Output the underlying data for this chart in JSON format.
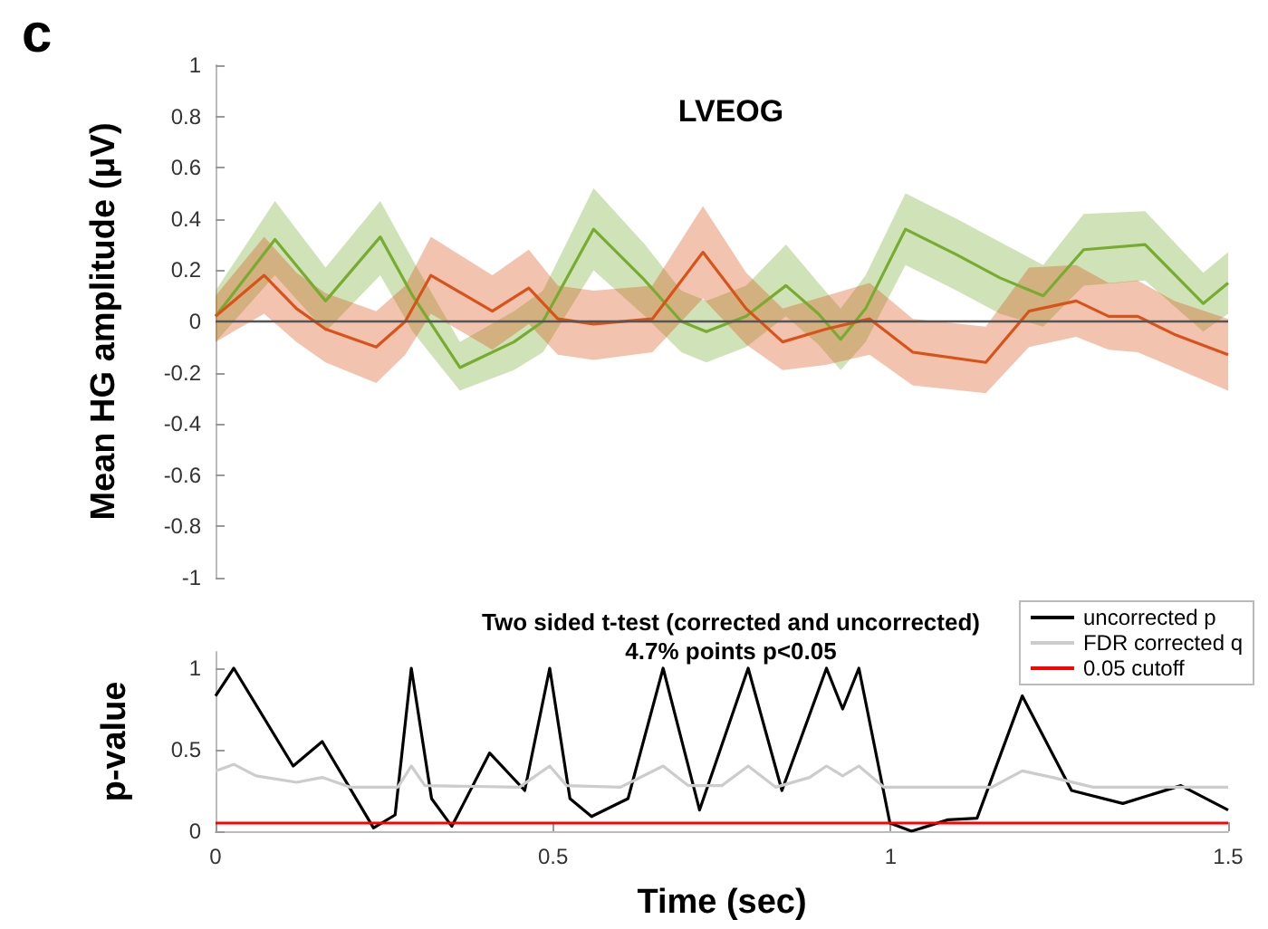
{
  "chart_data": [
    {
      "type": "line",
      "title": "LVEOG",
      "ylabel": "Mean HG amplitude (μV)",
      "annotations": [
        "c"
      ],
      "marker": "none",
      "tick_labels": "y",
      "xlim": [
        0,
        1.5
      ],
      "ylim": [
        -1,
        1
      ],
      "yticks": [
        -1,
        -0.8,
        -0.6,
        -0.4,
        -0.2,
        0,
        0.2,
        0.4,
        0.6,
        0.8,
        1
      ],
      "ref_lines": [
        {
          "axis": "y",
          "value": 0,
          "label": null,
          "color": "#555555"
        }
      ],
      "series": [
        {
          "color": "#77ac30",
          "x": [
            0,
            0.088,
            0.163,
            0.244,
            0.292,
            0.362,
            0.442,
            0.485,
            0.56,
            0.636,
            0.69,
            0.727,
            0.786,
            0.845,
            0.893,
            0.926,
            0.963,
            1.022,
            1.098,
            1.162,
            1.226,
            1.286,
            1.377,
            1.463,
            1.5
          ],
          "values": [
            0.02,
            0.32,
            0.08,
            0.33,
            0.1,
            -0.18,
            -0.08,
            0,
            0.36,
            0.16,
            0,
            -0.04,
            0.02,
            0.14,
            0.03,
            -0.07,
            0.05,
            0.36,
            0.26,
            0.17,
            0.1,
            0.28,
            0.3,
            0.07,
            0.15
          ],
          "lower": [
            -0.08,
            0.18,
            -0.04,
            0.18,
            -0.04,
            -0.27,
            -0.19,
            -0.12,
            0.2,
            0.02,
            -0.12,
            -0.16,
            -0.1,
            0.02,
            -0.09,
            -0.19,
            -0.08,
            0.22,
            0.12,
            0.03,
            -0.02,
            0.14,
            0.16,
            -0.04,
            0.03
          ],
          "upper": [
            0.12,
            0.47,
            0.21,
            0.47,
            0.24,
            -0.08,
            0.04,
            0.12,
            0.52,
            0.3,
            0.12,
            0.08,
            0.14,
            0.3,
            0.15,
            0.05,
            0.18,
            0.5,
            0.4,
            0.31,
            0.22,
            0.42,
            0.43,
            0.19,
            0.27
          ]
        },
        {
          "color": "#d95319",
          "x": [
            0,
            0.072,
            0.12,
            0.163,
            0.238,
            0.281,
            0.319,
            0.41,
            0.464,
            0.507,
            0.56,
            0.647,
            0.722,
            0.786,
            0.84,
            0.904,
            0.969,
            1.033,
            1.141,
            1.205,
            1.275,
            1.323,
            1.366,
            1.42,
            1.5
          ],
          "values": [
            0.02,
            0.18,
            0.05,
            -0.03,
            -0.1,
            0,
            0.18,
            0.04,
            0.13,
            0.01,
            -0.01,
            0.01,
            0.27,
            0.05,
            -0.08,
            -0.03,
            0.01,
            -0.12,
            -0.16,
            0.04,
            0.08,
            0.02,
            0.02,
            -0.05,
            -0.13
          ],
          "lower": [
            -0.08,
            0.03,
            -0.08,
            -0.16,
            -0.24,
            -0.13,
            0.03,
            -0.11,
            -0.01,
            -0.13,
            -0.15,
            -0.12,
            0.09,
            -0.09,
            -0.19,
            -0.17,
            -0.13,
            -0.25,
            -0.28,
            -0.1,
            -0.06,
            -0.11,
            -0.12,
            -0.18,
            -0.27
          ],
          "upper": [
            0.1,
            0.33,
            0.19,
            0.11,
            0.04,
            0.14,
            0.33,
            0.18,
            0.28,
            0.14,
            0.12,
            0.14,
            0.45,
            0.19,
            0.05,
            0.1,
            0.15,
            0.01,
            -0.02,
            0.21,
            0.22,
            0.15,
            0.16,
            0.08,
            0.01
          ]
        }
      ]
    },
    {
      "type": "line",
      "title": "Two sided t-test (corrected and uncorrected)",
      "subtitle": "4.7% points p<0.05",
      "xlabel": "Time (sec)",
      "ylabel": "p-value",
      "marker": "none",
      "legend": "top right",
      "xlim": [
        0,
        1.5
      ],
      "xticks": [
        0,
        0.5,
        1,
        1.5
      ],
      "ylim": [
        0,
        1.1
      ],
      "yticks": [
        0,
        0.5,
        1
      ],
      "series": [
        {
          "name": "uncorrected p",
          "color": "#000000",
          "x": [
            0,
            0.027,
            0.115,
            0.158,
            0.234,
            0.266,
            0.29,
            0.32,
            0.35,
            0.406,
            0.458,
            0.495,
            0.525,
            0.557,
            0.611,
            0.663,
            0.717,
            0.789,
            0.839,
            0.905,
            0.929,
            0.953,
            0.999,
            1.031,
            1.085,
            1.128,
            1.195,
            1.268,
            1.344,
            1.43,
            1.5
          ],
          "values": [
            0.83,
            1,
            0.4,
            0.55,
            0.02,
            0.1,
            1,
            0.2,
            0.03,
            0.48,
            0.25,
            1,
            0.2,
            0.09,
            0.2,
            1,
            0.13,
            1,
            0.25,
            1,
            0.75,
            1,
            0.05,
            0,
            0.07,
            0.08,
            0.83,
            0.25,
            0.17,
            0.28,
            0.13
          ]
        },
        {
          "name": "FDR corrected q",
          "color": "#cccccc",
          "x": [
            0,
            0.027,
            0.06,
            0.12,
            0.158,
            0.2,
            0.27,
            0.29,
            0.31,
            0.45,
            0.495,
            0.52,
            0.6,
            0.663,
            0.7,
            0.75,
            0.789,
            0.83,
            0.88,
            0.905,
            0.929,
            0.953,
            0.99,
            1.15,
            1.195,
            1.24,
            1.3,
            1.5
          ],
          "values": [
            0.37,
            0.41,
            0.34,
            0.3,
            0.33,
            0.27,
            0.27,
            0.4,
            0.28,
            0.27,
            0.4,
            0.28,
            0.27,
            0.4,
            0.28,
            0.28,
            0.4,
            0.27,
            0.33,
            0.4,
            0.34,
            0.4,
            0.27,
            0.27,
            0.37,
            0.33,
            0.27,
            0.27
          ]
        },
        {
          "name": "0.05 cutoff",
          "color": "#ff0000",
          "x": [
            0,
            1.5
          ],
          "values": [
            0.05,
            0.05
          ]
        }
      ]
    }
  ]
}
